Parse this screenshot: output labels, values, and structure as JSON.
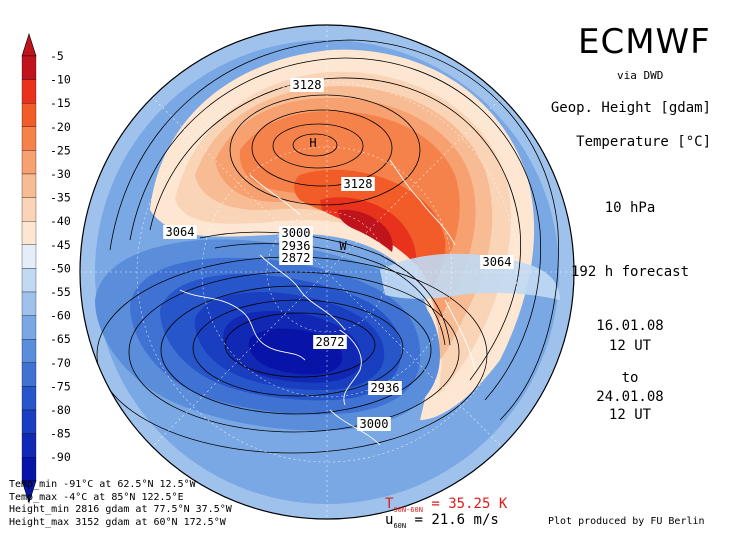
{
  "brand": "ECMWF",
  "source": "via DWD",
  "variables": [
    "Geop. Height [gdam]",
    "Temperature [°C]"
  ],
  "level": "10 hPa",
  "forecast": "192 h forecast",
  "init": {
    "date": "16.01.08",
    "time": "12 UT"
  },
  "to_label": "to",
  "valid": {
    "date": "24.01.08",
    "time": "12 UT"
  },
  "colorbar": {
    "labels": [
      "-5",
      "-10",
      "-15",
      "-20",
      "-25",
      "-30",
      "-35",
      "-40",
      "-45",
      "-50",
      "-55",
      "-60",
      "-65",
      "-70",
      "-75",
      "-80",
      "-85",
      "-90"
    ],
    "colors": [
      "#c0141c",
      "#e8321c",
      "#f25c28",
      "#f5824a",
      "#f7a070",
      "#f8bc94",
      "#fad4b6",
      "#fde6d2",
      "#e3eefa",
      "#c1d9f3",
      "#9fc2ec",
      "#7aa8e4",
      "#5a8edb",
      "#3f72d3",
      "#2756ca",
      "#1a3ec0",
      "#1028b4",
      "#0814a8"
    ]
  },
  "contour_labels": [
    {
      "text": "3128",
      "kind": "height"
    },
    {
      "text": "H",
      "kind": "marker"
    },
    {
      "text": "3128",
      "kind": "height"
    },
    {
      "text": "3064",
      "kind": "height"
    },
    {
      "text": "3000",
      "kind": "height"
    },
    {
      "text": "2936",
      "kind": "height"
    },
    {
      "text": "2872",
      "kind": "height"
    },
    {
      "text": "W",
      "kind": "marker"
    },
    {
      "text": "3064",
      "kind": "height"
    },
    {
      "text": "2872",
      "kind": "height"
    },
    {
      "text": "2936",
      "kind": "height"
    },
    {
      "text": "3000",
      "kind": "height"
    }
  ],
  "stats": [
    "Temp_min -91°C at 62.5°N 12.5°W",
    "Temp_max -4°C at 85°N 122.5°E",
    "Height_min 2816 gdam at 77.5°N 37.5°W",
    "Height_max 3152 gdam at 60°N 172.5°W"
  ],
  "t_diff": {
    "symbol": "T",
    "sub": "90N-60N",
    "value": "= 35.25 K"
  },
  "u_mean": {
    "symbol": "u",
    "sub": "60N",
    "value": "= 21.6 m/s"
  },
  "credit": "Plot produced by FU Berlin"
}
